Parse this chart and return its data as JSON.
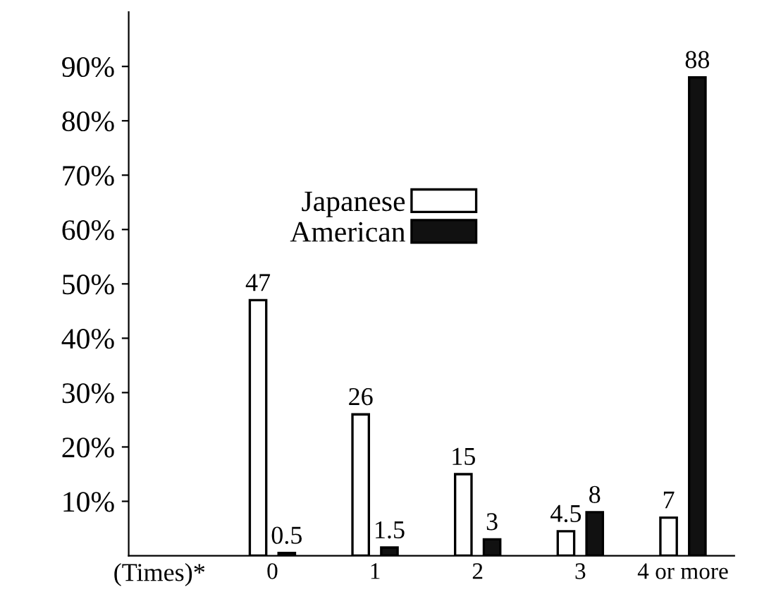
{
  "chart_data": {
    "type": "bar",
    "xlabel": "(Times)*",
    "categories": [
      "0",
      "1",
      "2",
      "3",
      "4 or more"
    ],
    "series": [
      {
        "name": "Japanese",
        "color": "#ffffff",
        "values": [
          47,
          26,
          15,
          4.5,
          7
        ]
      },
      {
        "name": "American",
        "color": "#111111",
        "values": [
          0.5,
          1.5,
          3,
          8,
          88
        ]
      }
    ],
    "ylim": [
      0,
      100
    ],
    "yticks": [
      {
        "value": 10,
        "label": "10%"
      },
      {
        "value": 20,
        "label": "20%"
      },
      {
        "value": 30,
        "label": "30%"
      },
      {
        "value": 40,
        "label": "40%"
      },
      {
        "value": 50,
        "label": "50%"
      },
      {
        "value": 60,
        "label": "60%"
      },
      {
        "value": 70,
        "label": "70%"
      },
      {
        "value": 80,
        "label": "80%"
      },
      {
        "value": 90,
        "label": "90%"
      }
    ],
    "data_labels": true,
    "grid": false,
    "legend": "top"
  }
}
